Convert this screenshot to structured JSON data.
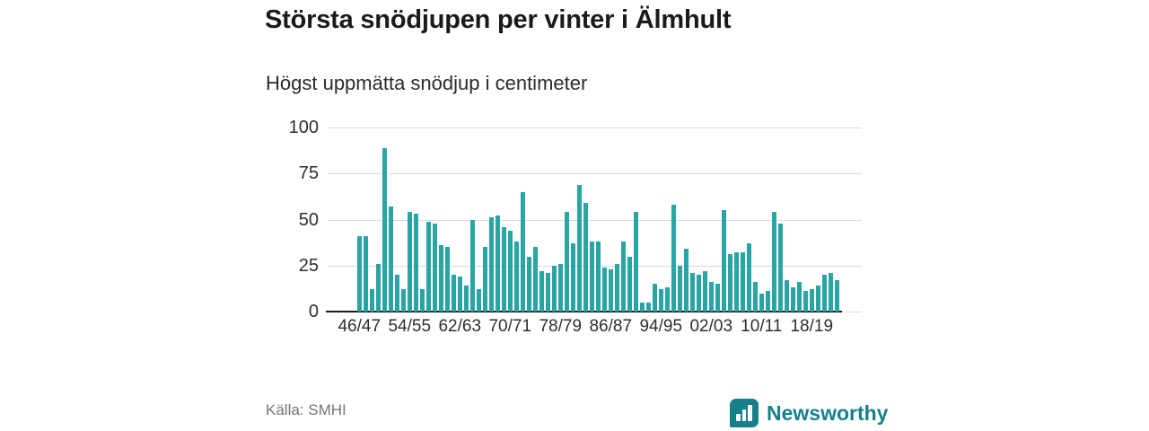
{
  "header": {
    "title": "Största snödjupen per vinter i Älmhult",
    "subtitle": "Högst uppmätta snödjup i centimeter"
  },
  "footer": {
    "source": "Källa: SMHI",
    "brand": "Newsworthy"
  },
  "colors": {
    "bar": "#29a5a5",
    "brand": "#16808a",
    "grid": "#dadada",
    "axis": "#1a1a1a",
    "text": "#1a1a1a",
    "muted": "#757575"
  },
  "chart_data": {
    "type": "bar",
    "title": "Största snödjupen per vinter i Älmhult",
    "subtitle": "Högst uppmätta snödjup i centimeter",
    "ylim": [
      0,
      100
    ],
    "yticks": [
      0,
      25,
      50,
      75,
      100
    ],
    "grid": true,
    "legend": false,
    "x_tick_labels": [
      "46/47",
      "54/55",
      "62/63",
      "70/71",
      "78/79",
      "86/87",
      "94/95",
      "02/03",
      "10/11",
      "18/19"
    ],
    "categories": [
      "46/47",
      "47/48",
      "48/49",
      "49/50",
      "50/51",
      "51/52",
      "52/53",
      "53/54",
      "54/55",
      "55/56",
      "56/57",
      "57/58",
      "58/59",
      "59/60",
      "60/61",
      "61/62",
      "62/63",
      "63/64",
      "64/65",
      "65/66",
      "66/67",
      "67/68",
      "68/69",
      "69/70",
      "70/71",
      "71/72",
      "72/73",
      "73/74",
      "74/75",
      "75/76",
      "76/77",
      "77/78",
      "78/79",
      "79/80",
      "80/81",
      "81/82",
      "82/83",
      "83/84",
      "84/85",
      "85/86",
      "86/87",
      "87/88",
      "88/89",
      "89/90",
      "90/91",
      "91/92",
      "92/93",
      "93/94",
      "94/95",
      "95/96",
      "96/97",
      "97/98",
      "98/99",
      "99/00",
      "00/01",
      "01/02",
      "02/03",
      "03/04",
      "04/05",
      "05/06",
      "06/07",
      "07/08",
      "08/09",
      "09/10",
      "10/11",
      "11/12",
      "12/13",
      "13/14",
      "14/15",
      "15/16",
      "16/17",
      "17/18",
      "18/19",
      "19/20",
      "20/21",
      "21/22",
      "22/23"
    ],
    "values": [
      41,
      41,
      12,
      26,
      89,
      57,
      20,
      12,
      54,
      53,
      12,
      49,
      48,
      36,
      35,
      20,
      19,
      14,
      50,
      12,
      35,
      51,
      52,
      46,
      44,
      38,
      65,
      30,
      35,
      22,
      21,
      25,
      26,
      54,
      37,
      69,
      59,
      38,
      38,
      24,
      23,
      26,
      38,
      30,
      54,
      5,
      5,
      15,
      12,
      13,
      58,
      25,
      34,
      21,
      20,
      22,
      16,
      15,
      55,
      31,
      32,
      32,
      37,
      16,
      10,
      11,
      54,
      48,
      17,
      13,
      16,
      11,
      12,
      14,
      20,
      21,
      17
    ]
  }
}
